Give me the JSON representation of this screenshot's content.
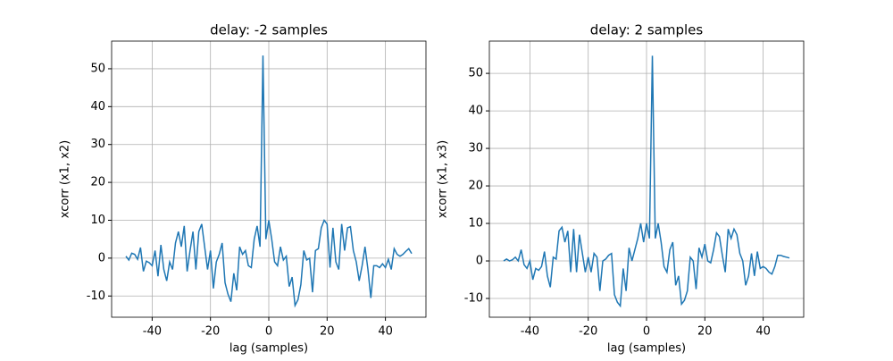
{
  "chart_data": [
    {
      "type": "line",
      "title": "delay: -2 samples",
      "x_label": "lag (samples)",
      "y_label": "xcorr (x1, x2)",
      "x": [
        -49,
        -48,
        -47,
        -46,
        -45,
        -44,
        -43,
        -42,
        -41,
        -40,
        -39,
        -38,
        -37,
        -36,
        -35,
        -34,
        -33,
        -32,
        -31,
        -30,
        -29,
        -28,
        -27,
        -26,
        -25,
        -24,
        -23,
        -22,
        -21,
        -20,
        -19,
        -18,
        -17,
        -16,
        -15,
        -14,
        -13,
        -12,
        -11,
        -10,
        -9,
        -8,
        -7,
        -6,
        -5,
        -4,
        -3,
        -2,
        -1,
        0,
        1,
        2,
        3,
        4,
        5,
        6,
        7,
        8,
        9,
        10,
        11,
        12,
        13,
        14,
        15,
        16,
        17,
        18,
        19,
        20,
        21,
        22,
        23,
        24,
        25,
        26,
        27,
        28,
        29,
        30,
        31,
        32,
        33,
        34,
        35,
        36,
        37,
        38,
        39,
        40,
        41,
        42,
        43,
        44,
        45,
        46,
        47,
        48,
        49
      ],
      "series": [
        {
          "name": "xcorr",
          "color": "#1f77b4",
          "values": [
            0.5,
            -0.5,
            1.3,
            1,
            -0.3,
            2.8,
            -3.5,
            -0.8,
            -1.2,
            -2,
            2,
            -4.8,
            3.5,
            -3,
            -6,
            -1,
            -3,
            4,
            7,
            3,
            8.5,
            -3.5,
            2,
            7,
            -3,
            7,
            9,
            3,
            -3,
            2,
            -8,
            -1,
            1,
            4,
            -6.5,
            -9.5,
            -11.5,
            -4,
            -8.5,
            3,
            1,
            2,
            -2,
            -2.5,
            5,
            8.5,
            3,
            53.5,
            5,
            10,
            5,
            -1,
            -2,
            3,
            -0.5,
            0.5,
            -7.5,
            -5,
            -12.5,
            -11,
            -7,
            2,
            -0.5,
            0,
            -9,
            2,
            2.5,
            8,
            10,
            9,
            -2.5,
            8,
            -1,
            -3,
            9,
            2,
            8,
            8.3,
            2,
            -1,
            -6,
            -2,
            3,
            -3,
            -10.5,
            -2,
            -2,
            -2.5,
            -1.5,
            -2.5,
            -0.3,
            -3,
            2.5,
            1,
            0.5,
            1,
            1.8,
            2.5,
            1.2
          ]
        }
      ],
      "xlim": [
        -53.9,
        53.9
      ],
      "xticks": [
        -40,
        -20,
        0,
        20,
        40
      ],
      "ylim": [
        -15.6,
        57.3
      ],
      "yticks": [
        -10,
        0,
        10,
        20,
        30,
        40,
        50
      ],
      "grid": true
    },
    {
      "type": "line",
      "title": "delay: 2 samples",
      "x_label": "lag (samples)",
      "y_label": "xcorr (x1, x3)",
      "x": [
        -49,
        -48,
        -47,
        -46,
        -45,
        -44,
        -43,
        -42,
        -41,
        -40,
        -39,
        -38,
        -37,
        -36,
        -35,
        -34,
        -33,
        -32,
        -31,
        -30,
        -29,
        -28,
        -27,
        -26,
        -25,
        -24,
        -23,
        -22,
        -21,
        -20,
        -19,
        -18,
        -17,
        -16,
        -15,
        -14,
        -13,
        -12,
        -11,
        -10,
        -9,
        -8,
        -7,
        -6,
        -5,
        -4,
        -3,
        -2,
        -1,
        0,
        1,
        2,
        3,
        4,
        5,
        6,
        7,
        8,
        9,
        10,
        11,
        12,
        13,
        14,
        15,
        16,
        17,
        18,
        19,
        20,
        21,
        22,
        23,
        24,
        25,
        26,
        27,
        28,
        29,
        30,
        31,
        32,
        33,
        34,
        35,
        36,
        37,
        38,
        39,
        40,
        41,
        42,
        43,
        44,
        45,
        46,
        47,
        48,
        49
      ],
      "series": [
        {
          "name": "xcorr",
          "color": "#1f77b4",
          "values": [
            0,
            0.5,
            0,
            0.3,
            1,
            0,
            3,
            -1,
            -2,
            0,
            -5,
            -2,
            -2.5,
            -1.5,
            2.5,
            -4,
            -7,
            1,
            0.5,
            8,
            9,
            5,
            8,
            -3,
            8.5,
            -3,
            7,
            2,
            -3,
            1,
            -3,
            2,
            1,
            -8,
            0,
            0.5,
            1.5,
            2,
            -9,
            -11,
            -12,
            -2,
            -8,
            3.5,
            0,
            3,
            6,
            10,
            5,
            10,
            6,
            54.7,
            6,
            10,
            5,
            -1.5,
            -3,
            3,
            5,
            -6.5,
            -4,
            -11.5,
            -10.5,
            -8,
            1,
            0,
            -7.5,
            3.5,
            1,
            4.5,
            0,
            -0.5,
            3,
            7.5,
            6.5,
            1.5,
            -3,
            8.5,
            6,
            8.5,
            7,
            2,
            0,
            -6.5,
            -4,
            2,
            -4,
            2.5,
            -2,
            -1.5,
            -2,
            -3,
            -3.5,
            -1.5,
            1.5,
            1.5,
            1.2,
            1,
            0.8
          ]
        }
      ],
      "xlim": [
        -53.9,
        53.9
      ],
      "xticks": [
        -40,
        -20,
        0,
        20,
        40
      ],
      "ylim": [
        -15,
        58.6
      ],
      "yticks": [
        -10,
        0,
        10,
        20,
        30,
        40,
        50
      ],
      "grid": true
    }
  ]
}
